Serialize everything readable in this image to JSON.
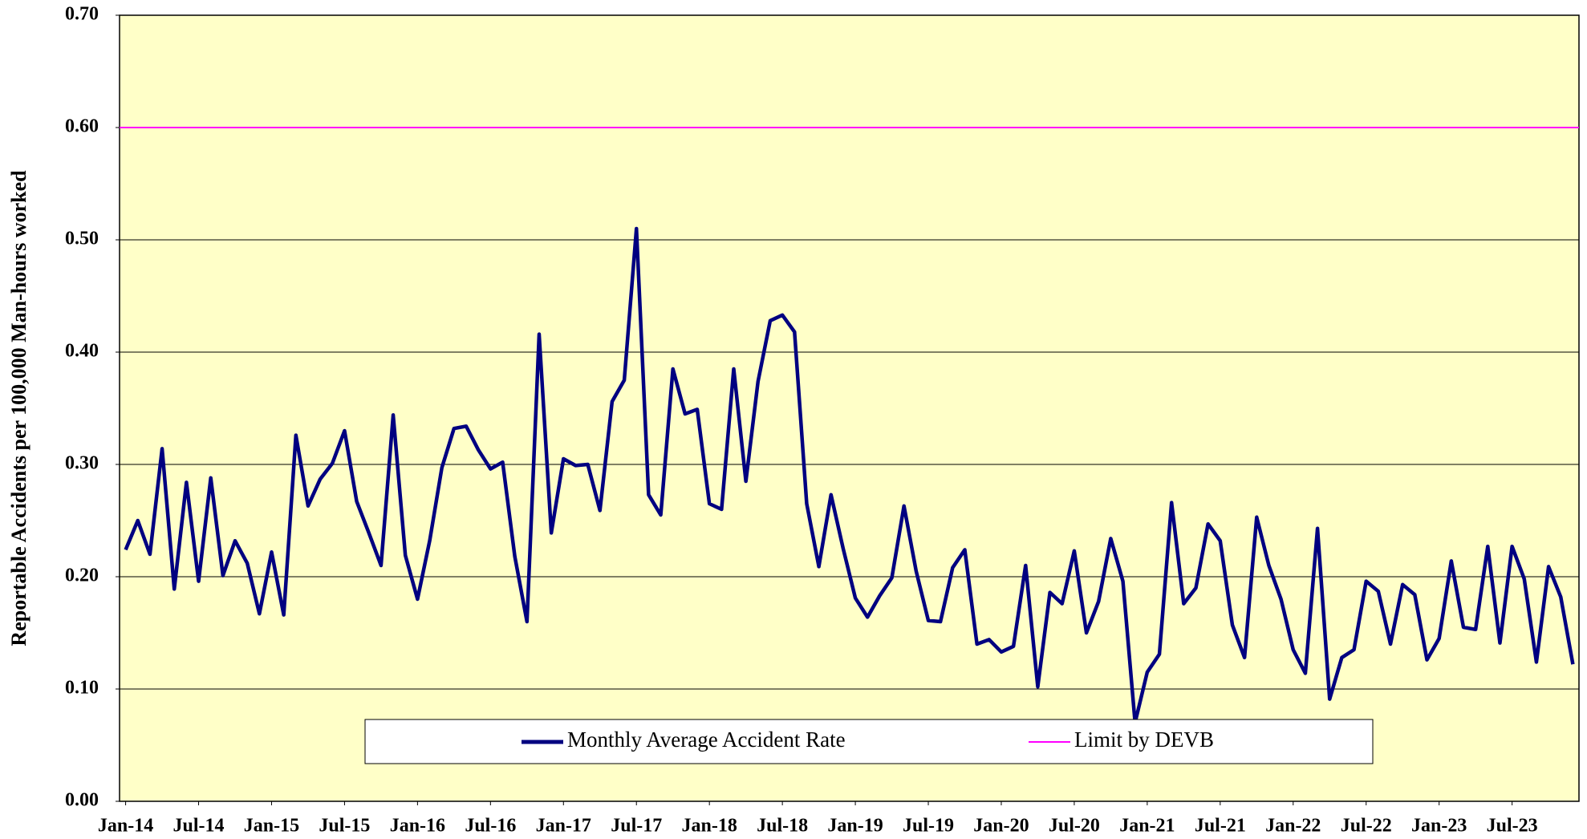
{
  "chart_data": {
    "type": "line",
    "y_label": "Reportable Accidents per 100,000 Man-hours worked",
    "categories": [
      "Jan-14",
      null,
      null,
      null,
      null,
      null,
      "Jul-14",
      null,
      null,
      null,
      null,
      null,
      "Jan-15",
      null,
      null,
      null,
      null,
      null,
      "Jul-15",
      null,
      null,
      null,
      null,
      null,
      "Jan-16",
      null,
      null,
      null,
      null,
      null,
      "Jul-16",
      null,
      null,
      null,
      null,
      null,
      "Jan-17",
      null,
      null,
      null,
      null,
      null,
      "Jul-17",
      null,
      null,
      null,
      null,
      null,
      "Jan-18",
      null,
      null,
      null,
      null,
      null,
      "Jul-18",
      null,
      null,
      null,
      null,
      null,
      "Jan-19",
      null,
      null,
      null,
      null,
      null,
      "Jul-19",
      null,
      null,
      null,
      null,
      null,
      "Jan-20",
      null,
      null,
      null,
      null,
      null,
      "Jul-20",
      null,
      null,
      null,
      null,
      null,
      "Jan-21",
      null,
      null,
      null,
      null,
      null,
      "Jul-21",
      null,
      null,
      null,
      null,
      null,
      "Jan-22",
      null,
      null,
      null,
      null,
      null,
      "Jul-22",
      null,
      null,
      null,
      null,
      null,
      "Jan-23",
      null,
      null,
      null,
      null,
      null,
      "Jul-23",
      null,
      null,
      null,
      null,
      null
    ],
    "series": [
      {
        "name": "Monthly Average Accident Rate",
        "color": "#000080",
        "values": [
          0.224,
          0.25,
          0.22,
          0.314,
          0.189,
          0.284,
          0.196,
          0.288,
          0.201,
          0.232,
          0.212,
          0.167,
          0.222,
          0.166,
          0.326,
          0.263,
          0.287,
          0.301,
          0.33,
          0.267,
          0.239,
          0.21,
          0.344,
          0.219,
          0.18,
          0.232,
          0.297,
          0.332,
          0.334,
          0.313,
          0.296,
          0.302,
          0.218,
          0.16,
          0.416,
          0.239,
          0.305,
          0.299,
          0.3,
          0.259,
          0.356,
          0.375,
          0.51,
          0.273,
          0.255,
          0.385,
          0.345,
          0.349,
          0.265,
          0.26,
          0.385,
          0.285,
          0.374,
          0.428,
          0.433,
          0.418,
          0.265,
          0.209,
          0.273,
          0.225,
          0.181,
          0.164,
          0.183,
          0.199,
          0.263,
          0.205,
          0.161,
          0.16,
          0.208,
          0.224,
          0.14,
          0.144,
          0.133,
          0.138,
          0.21,
          0.102,
          0.186,
          0.176,
          0.223,
          0.15,
          0.178,
          0.234,
          0.196,
          0.07,
          0.115,
          0.131,
          0.266,
          0.176,
          0.19,
          0.247,
          0.232,
          0.157,
          0.128,
          0.253,
          0.21,
          0.18,
          0.135,
          0.114,
          0.243,
          0.091,
          0.128,
          0.135,
          0.196,
          0.187,
          0.14,
          0.193,
          0.184,
          0.126,
          0.145,
          0.214,
          0.155,
          0.153,
          0.227,
          0.141,
          0.227,
          0.198,
          0.124,
          0.209,
          0.182,
          0.122
        ]
      }
    ],
    "reference_line": {
      "name": "Limit by DEVB",
      "value": 0.6,
      "color": "#ff00ff"
    },
    "ylim": [
      0,
      0.7
    ],
    "yticks": [
      {
        "value": 0,
        "label": "0.00"
      },
      {
        "value": 0.1,
        "label": "0.10"
      },
      {
        "value": 0.2,
        "label": "0.20"
      },
      {
        "value": 0.3,
        "label": "0.30"
      },
      {
        "value": 0.4,
        "label": "0.40"
      },
      {
        "value": 0.5,
        "label": "0.50"
      },
      {
        "value": 0.6,
        "label": "0.60"
      },
      {
        "value": 0.7,
        "label": "0.70"
      }
    ],
    "grid": true
  }
}
